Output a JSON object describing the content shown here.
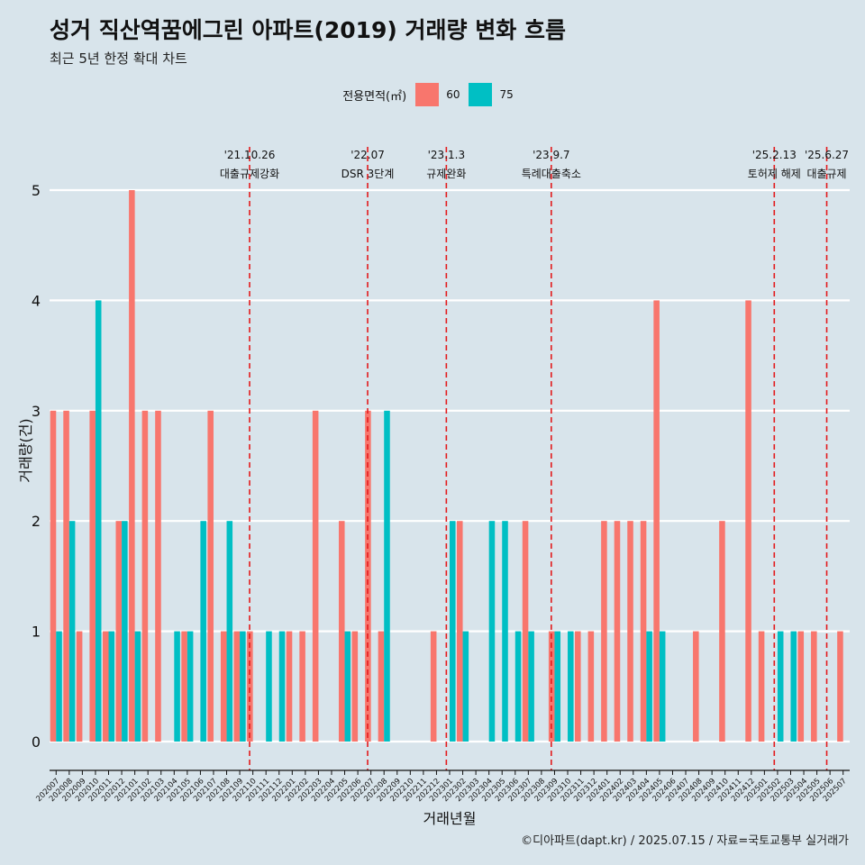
{
  "title": "성거 직산역꿈에그린 아파트(2019) 거래량 변화 흐름",
  "subtitle": "최근 5년 한정 확대 차트",
  "caption": "©디아파트(dapt.kr) / 2025.07.15 / 자료=국토교통부 실거래가",
  "legend": {
    "title": "전용면적(㎡)",
    "items": [
      {
        "label": "60",
        "color": "#f8766d"
      },
      {
        "label": "75",
        "color": "#00bfc4"
      }
    ]
  },
  "chart_data": {
    "type": "bar",
    "title": "성거 직산역꿈에그린 아파트(2019) 거래량 변화 흐름",
    "xlabel": "거래년월",
    "ylabel": "거래량(건)",
    "ylim": [
      0,
      5
    ],
    "yticks": [
      0,
      1,
      2,
      3,
      4,
      5
    ],
    "categories": [
      "202007",
      "202008",
      "202009",
      "202010",
      "202011",
      "202012",
      "202101",
      "202102",
      "202103",
      "202104",
      "202105",
      "202106",
      "202107",
      "202108",
      "202109",
      "202110",
      "202111",
      "202112",
      "202201",
      "202202",
      "202203",
      "202204",
      "202205",
      "202206",
      "202207",
      "202208",
      "202209",
      "202210",
      "202211",
      "202212",
      "202301",
      "202302",
      "202303",
      "202304",
      "202305",
      "202306",
      "202307",
      "202308",
      "202309",
      "202310",
      "202311",
      "202312",
      "202401",
      "202402",
      "202403",
      "202404",
      "202405",
      "202406",
      "202407",
      "202408",
      "202409",
      "202410",
      "202411",
      "202412",
      "202501",
      "202502",
      "202503",
      "202504",
      "202505",
      "202506",
      "202507"
    ],
    "series": [
      {
        "name": "60",
        "color": "#f8766d",
        "values": [
          3,
          3,
          1,
          3,
          1,
          2,
          5,
          3,
          3,
          0,
          1,
          0,
          3,
          1,
          1,
          1,
          0,
          0,
          1,
          1,
          3,
          0,
          2,
          1,
          3,
          1,
          0,
          0,
          0,
          1,
          0,
          2,
          0,
          0,
          0,
          0,
          2,
          0,
          1,
          0,
          1,
          1,
          2,
          2,
          2,
          2,
          4,
          0,
          0,
          1,
          0,
          2,
          0,
          4,
          1,
          0,
          0,
          1,
          1,
          0,
          1
        ]
      },
      {
        "name": "75",
        "color": "#00bfc4",
        "values": [
          1,
          2,
          0,
          4,
          1,
          2,
          1,
          0,
          0,
          1,
          1,
          2,
          0,
          2,
          1,
          0,
          1,
          1,
          0,
          0,
          0,
          0,
          1,
          0,
          0,
          3,
          0,
          0,
          0,
          0,
          2,
          1,
          0,
          2,
          2,
          1,
          1,
          0,
          1,
          1,
          0,
          0,
          0,
          0,
          0,
          1,
          1,
          0,
          0,
          0,
          0,
          0,
          0,
          0,
          0,
          1,
          1,
          0,
          0,
          0,
          0
        ]
      }
    ],
    "annotations": [
      {
        "date": "'21.10.26",
        "label": "대출규제강화",
        "category": "202110"
      },
      {
        "date": "'22.07",
        "label": "DSR 3단계",
        "category": "202207"
      },
      {
        "date": "'23.1.3",
        "label": "규제완화",
        "category": "202301"
      },
      {
        "date": "'23.9.7",
        "label": "특례대출축소",
        "category": "202309"
      },
      {
        "date": "'25.2.13",
        "label": "토허제 해제",
        "category": "202502"
      },
      {
        "date": "'25.6.27",
        "label": "대출규제",
        "category": "202506"
      }
    ]
  }
}
